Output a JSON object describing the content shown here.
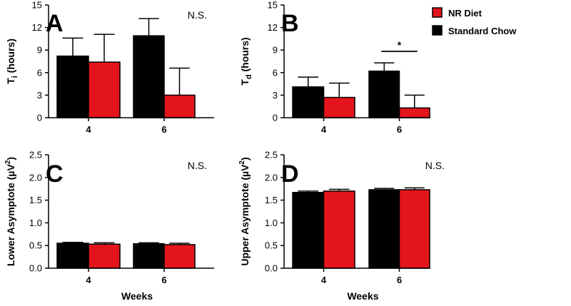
{
  "legend": {
    "items": [
      {
        "label": "NR Diet",
        "color": "#e3141b"
      },
      {
        "label": "Standard Chow",
        "color": "#000000"
      }
    ]
  },
  "colors": {
    "standard_chow": "#000000",
    "nr_diet": "#e3141b",
    "axis": "#000000"
  },
  "chart_data": [
    {
      "type": "bar",
      "panel_label": "A",
      "annotation": "N.S.",
      "ylabel_main": "T",
      "ylabel_sub": "i",
      "ylabel_rest": " (hours)",
      "xlabel": "",
      "categories": [
        "4",
        "6"
      ],
      "ylim": [
        0,
        15
      ],
      "yticks": [
        "0",
        "3",
        "6",
        "9",
        "12",
        "15"
      ],
      "series": [
        {
          "name": "Standard Chow",
          "values": [
            8.2,
            10.9
          ],
          "errors": [
            2.4,
            2.3
          ]
        },
        {
          "name": "NR Diet",
          "values": [
            7.4,
            3.0
          ],
          "errors": [
            3.7,
            3.6
          ]
        }
      ]
    },
    {
      "type": "bar",
      "panel_label": "B",
      "annotation": "",
      "significance": {
        "label": "*",
        "category": "6"
      },
      "ylabel_main": "T",
      "ylabel_sub": "d",
      "ylabel_rest": " (hours)",
      "xlabel": "",
      "categories": [
        "4",
        "6"
      ],
      "ylim": [
        0,
        15
      ],
      "yticks": [
        "0",
        "3",
        "6",
        "9",
        "12",
        "15"
      ],
      "series": [
        {
          "name": "Standard Chow",
          "values": [
            4.1,
            6.2
          ],
          "errors": [
            1.3,
            1.1
          ]
        },
        {
          "name": "NR Diet",
          "values": [
            2.7,
            1.3
          ],
          "errors": [
            1.9,
            1.7
          ]
        }
      ]
    },
    {
      "type": "bar",
      "panel_label": "C",
      "annotation": "N.S.",
      "ylabel_main": "Lower Asymptote (µV",
      "ylabel_sup": "2",
      "ylabel_rest": ")",
      "xlabel": "Weeks",
      "categories": [
        "4",
        "6"
      ],
      "ylim": [
        0,
        2.5
      ],
      "yticks": [
        "0.0",
        "0.5",
        "1.0",
        "1.5",
        "2.0",
        "2.5"
      ],
      "series": [
        {
          "name": "Standard Chow",
          "values": [
            0.55,
            0.54
          ],
          "errors": [
            0.02,
            0.02
          ]
        },
        {
          "name": "NR Diet",
          "values": [
            0.53,
            0.52
          ],
          "errors": [
            0.03,
            0.03
          ]
        }
      ]
    },
    {
      "type": "bar",
      "panel_label": "D",
      "annotation": "N.S.",
      "ylabel_main": "Upper Asymptote (µV",
      "ylabel_sup": "2",
      "ylabel_rest": ")",
      "xlabel": "Weeks",
      "categories": [
        "4",
        "6"
      ],
      "ylim": [
        0,
        2.5
      ],
      "yticks": [
        "0.0",
        "0.5",
        "1.0",
        "1.5",
        "2.0",
        "2.5"
      ],
      "series": [
        {
          "name": "Standard Chow",
          "values": [
            1.67,
            1.73
          ],
          "errors": [
            0.03,
            0.03
          ]
        },
        {
          "name": "NR Diet",
          "values": [
            1.7,
            1.73
          ],
          "errors": [
            0.04,
            0.04
          ]
        }
      ]
    }
  ]
}
